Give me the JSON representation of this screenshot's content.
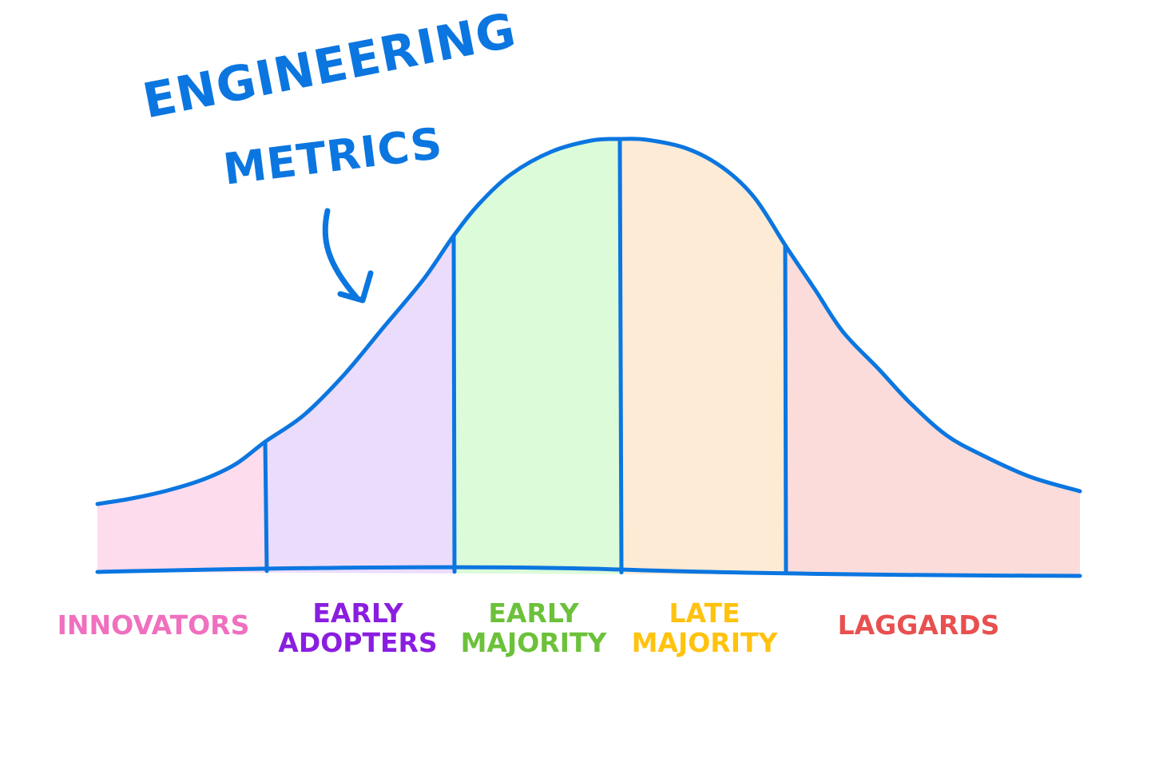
{
  "diagram": {
    "curve_color": "#0b76e0",
    "callout": {
      "lines": [
        "ENGINEERING",
        "METRICS"
      ],
      "color": "#0b76e0",
      "arrow_icon": "hand-drawn-curved-arrow-down"
    },
    "segments": [
      {
        "id": "innovators",
        "lines": [
          "INNOVATORS"
        ],
        "label_color": "#f06fbf",
        "fill_color": "#fddcee"
      },
      {
        "id": "early-adopters",
        "lines": [
          "EARLY",
          "ADOPTERS"
        ],
        "label_color": "#8a1ee0",
        "fill_color": "#ecdcfb"
      },
      {
        "id": "early-majority",
        "lines": [
          "EARLY",
          "MAJORITY"
        ],
        "label_color": "#6cc13a",
        "fill_color": "#dcfbd9"
      },
      {
        "id": "late-majority",
        "lines": [
          "LATE",
          "MAJORITY"
        ],
        "label_color": "#ffc20e",
        "fill_color": "#fdebd6"
      },
      {
        "id": "laggards",
        "lines": [
          "LAGGARDS"
        ],
        "label_color": "#e8504f",
        "fill_color": "#fcdcda"
      }
    ]
  }
}
